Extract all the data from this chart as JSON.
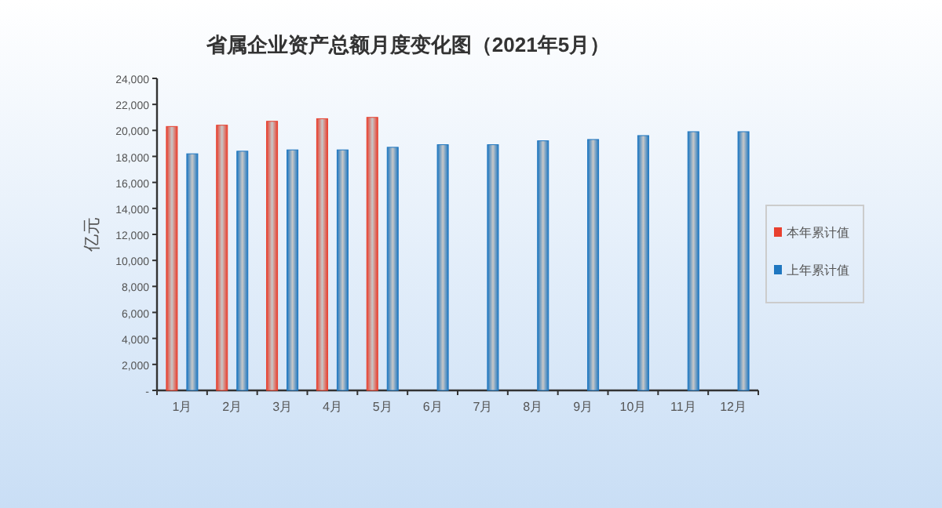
{
  "chart_data": {
    "type": "bar",
    "title": "省属企业资产总额月度变化图（2021年5月）",
    "ylabel": "亿元",
    "categories": [
      "1月",
      "2月",
      "3月",
      "4月",
      "5月",
      "6月",
      "7月",
      "8月",
      "9月",
      "10月",
      "11月",
      "12月"
    ],
    "series": [
      {
        "name": "本年累计值",
        "color": "#e8402f",
        "values": [
          20300,
          20400,
          20700,
          20900,
          21000,
          null,
          null,
          null,
          null,
          null,
          null,
          null
        ]
      },
      {
        "name": "上年累计值",
        "color": "#1f77c0",
        "values": [
          18200,
          18400,
          18500,
          18500,
          18700,
          18900,
          18900,
          19200,
          19300,
          19600,
          19900,
          19900
        ]
      }
    ],
    "ylim": [
      0,
      24000
    ],
    "yticks": [
      {
        "value": 0,
        "label": "-"
      },
      {
        "value": 2000,
        "label": "2,000"
      },
      {
        "value": 4000,
        "label": "4,000"
      },
      {
        "value": 6000,
        "label": "6,000"
      },
      {
        "value": 8000,
        "label": "8,000"
      },
      {
        "value": 10000,
        "label": "10,000"
      },
      {
        "value": 12000,
        "label": "12,000"
      },
      {
        "value": 14000,
        "label": "14,000"
      },
      {
        "value": 16000,
        "label": "16,000"
      },
      {
        "value": 18000,
        "label": "18,000"
      },
      {
        "value": 20000,
        "label": "20,000"
      },
      {
        "value": 22000,
        "label": "22,000"
      },
      {
        "value": 24000,
        "label": "24,000"
      }
    ],
    "grid": false,
    "legend": "right"
  }
}
